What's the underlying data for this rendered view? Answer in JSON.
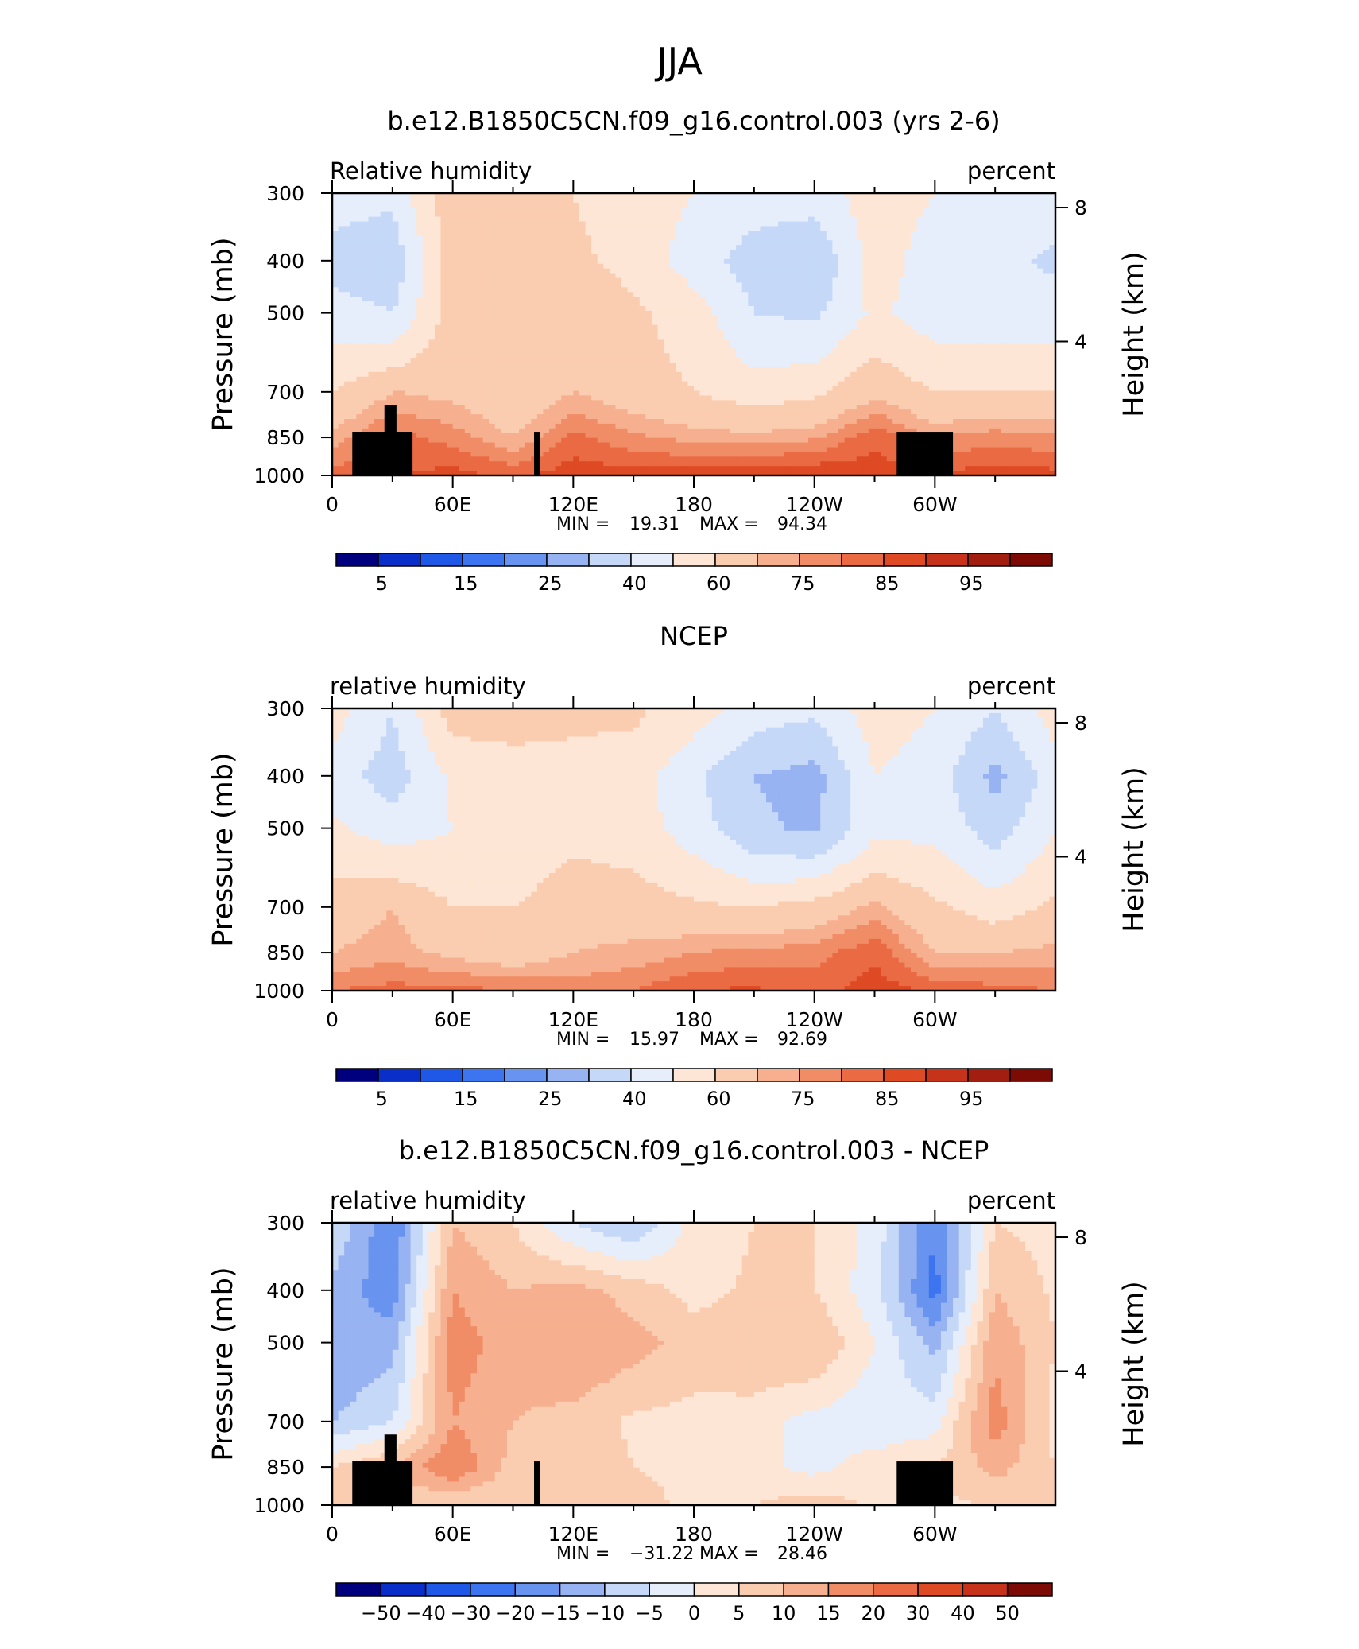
{
  "figure": {
    "title": "JJA"
  },
  "panels": [
    {
      "title": "b.e12.B1850C5CN.f09_g16.control.003 (yrs 2-6)",
      "left_label": "Relative  humidity",
      "right_label": "percent",
      "stats": {
        "min_label": "MIN =",
        "min_value": "19.31",
        "max_label": "MAX =",
        "max_value": "94.34"
      },
      "colorbar_type": "abs"
    },
    {
      "title": "NCEP",
      "left_label": "relative  humidity",
      "right_label": "percent",
      "stats": {
        "min_label": "MIN =",
        "min_value": "15.97",
        "max_label": "MAX =",
        "max_value": "92.69"
      },
      "colorbar_type": "abs"
    },
    {
      "title": "b.e12.B1850C5CN.f09_g16.control.003 - NCEP",
      "left_label": "relative  humidity",
      "right_label": "percent",
      "stats": {
        "min_label": "MIN =",
        "min_value": "−31.22",
        "max_label": "MAX =",
        "max_value": "28.46"
      },
      "colorbar_type": "diff"
    }
  ],
  "axes": {
    "y_label": "Pressure  (mb)",
    "y_ticks": [
      "300",
      "400",
      "500",
      "700",
      "850",
      "1000"
    ],
    "y_tick_values": [
      300,
      400,
      500,
      700,
      850,
      1000
    ],
    "y2_label": "Height  (km)",
    "y2_ticks": [
      "8",
      "4"
    ],
    "y2_tick_values": [
      8,
      4
    ],
    "x_ticks": [
      "0",
      "60E",
      "120E",
      "180",
      "120W",
      "60W"
    ],
    "x_tick_values": [
      0,
      60,
      120,
      180,
      240,
      300
    ],
    "x_range": [
      0,
      360
    ]
  },
  "colorbars": {
    "abs": {
      "labels": [
        "5",
        "15",
        "25",
        "40",
        "60",
        "75",
        "85",
        "95"
      ],
      "colors": [
        "#00007f",
        "#0a2fc8",
        "#1f58e6",
        "#3d74ef",
        "#6893ee",
        "#98b3f1",
        "#c5d8f7",
        "#e6eefb",
        "#fde6d5",
        "#fbcdb0",
        "#f6b08f",
        "#f18d66",
        "#ea6a44",
        "#dd4a24",
        "#c6321a",
        "#a21f10",
        "#7c0a05"
      ]
    },
    "diff": {
      "labels": [
        "−50",
        "−40",
        "−30",
        "−20",
        "−15",
        "−10",
        "−5",
        "0",
        "5",
        "10",
        "15",
        "20",
        "30",
        "40",
        "50"
      ],
      "colors": [
        "#00007f",
        "#0a2fc8",
        "#1f58e6",
        "#3d74ef",
        "#6893ee",
        "#98b3f1",
        "#c5d8f7",
        "#e6eefb",
        "#fde6d5",
        "#fbcdb0",
        "#f6b08f",
        "#f18d66",
        "#ea6a44",
        "#dd4a24",
        "#c6321a",
        "#7c0a05"
      ]
    }
  },
  "chart_data": [
    {
      "type": "heatmap",
      "title": "b.e12.B1850C5CN.f09_g16.control.003 (yrs 2-6)",
      "variable": "Relative  humidity",
      "units": "percent",
      "x": [
        0,
        30,
        60,
        90,
        120,
        150,
        180,
        210,
        240,
        270,
        300,
        330,
        360
      ],
      "y": [
        300,
        400,
        500,
        700,
        850,
        1000
      ],
      "values": [
        [
          45,
          42,
          68,
          62,
          60,
          55,
          50,
          45,
          45,
          55,
          50,
          45,
          45
        ],
        [
          35,
          33,
          65,
          62,
          62,
          57,
          45,
          35,
          30,
          55,
          45,
          43,
          38
        ],
        [
          45,
          40,
          65,
          62,
          68,
          62,
          55,
          40,
          38,
          52,
          45,
          45,
          45
        ],
        [
          60,
          70,
          68,
          62,
          70,
          65,
          60,
          55,
          58,
          68,
          60,
          60,
          60
        ],
        [
          72,
          82,
          78,
          70,
          82,
          76,
          73,
          72,
          74,
          84,
          75,
          78,
          76
        ],
        [
          82,
          85,
          87,
          84,
          88,
          88,
          88,
          89,
          90,
          88,
          86,
          88,
          87
        ]
      ],
      "min": 19.31,
      "max": 94.34
    },
    {
      "type": "heatmap",
      "title": "NCEP",
      "variable": "relative  humidity",
      "units": "percent",
      "x": [
        0,
        30,
        60,
        90,
        120,
        150,
        180,
        210,
        240,
        270,
        300,
        330,
        360
      ],
      "y": [
        300,
        400,
        500,
        700,
        850,
        1000
      ],
      "values": [
        [
          55,
          40,
          65,
          65,
          62,
          62,
          55,
          45,
          42,
          55,
          50,
          40,
          55
        ],
        [
          45,
          35,
          52,
          55,
          57,
          55,
          42,
          30,
          26,
          50,
          45,
          27,
          45
        ],
        [
          52,
          45,
          50,
          52,
          57,
          55,
          45,
          32,
          28,
          47,
          47,
          35,
          50
        ],
        [
          65,
          70,
          60,
          60,
          66,
          65,
          62,
          60,
          64,
          72,
          62,
          55,
          62
        ],
        [
          70,
          73,
          68,
          65,
          70,
          72,
          75,
          77,
          78,
          84,
          70,
          70,
          72
        ],
        [
          80,
          82,
          82,
          80,
          78,
          80,
          85,
          86,
          83,
          88,
          84,
          82,
          80
        ]
      ],
      "min": 15.97,
      "max": 92.69
    },
    {
      "type": "heatmap",
      "title": "b.e12.B1850C5CN.f09_g16.control.003 - NCEP",
      "variable": "relative  humidity",
      "units": "percent",
      "x": [
        0,
        30,
        60,
        90,
        120,
        150,
        180,
        210,
        240,
        270,
        300,
        330,
        360
      ],
      "y": [
        300,
        400,
        500,
        700,
        850,
        1000
      ],
      "values": [
        [
          -5,
          -20,
          10,
          5,
          -5,
          -10,
          2,
          5,
          5,
          -2,
          -20,
          5,
          3
        ],
        [
          -12,
          -18,
          15,
          10,
          12,
          8,
          3,
          6,
          5,
          -3,
          -22,
          10,
          4
        ],
        [
          -15,
          -12,
          18,
          12,
          15,
          12,
          8,
          10,
          10,
          0,
          -12,
          14,
          5
        ],
        [
          -10,
          -5,
          15,
          10,
          8,
          4,
          3,
          2,
          -2,
          -4,
          -2,
          18,
          3
        ],
        [
          5,
          10,
          20,
          8,
          10,
          5,
          3,
          2,
          -2,
          3,
          5,
          12,
          5
        ],
        [
          8,
          6,
          5,
          5,
          8,
          8,
          3,
          5,
          8,
          4,
          3,
          6,
          6
        ]
      ],
      "min": -31.22,
      "max": 28.46
    }
  ]
}
